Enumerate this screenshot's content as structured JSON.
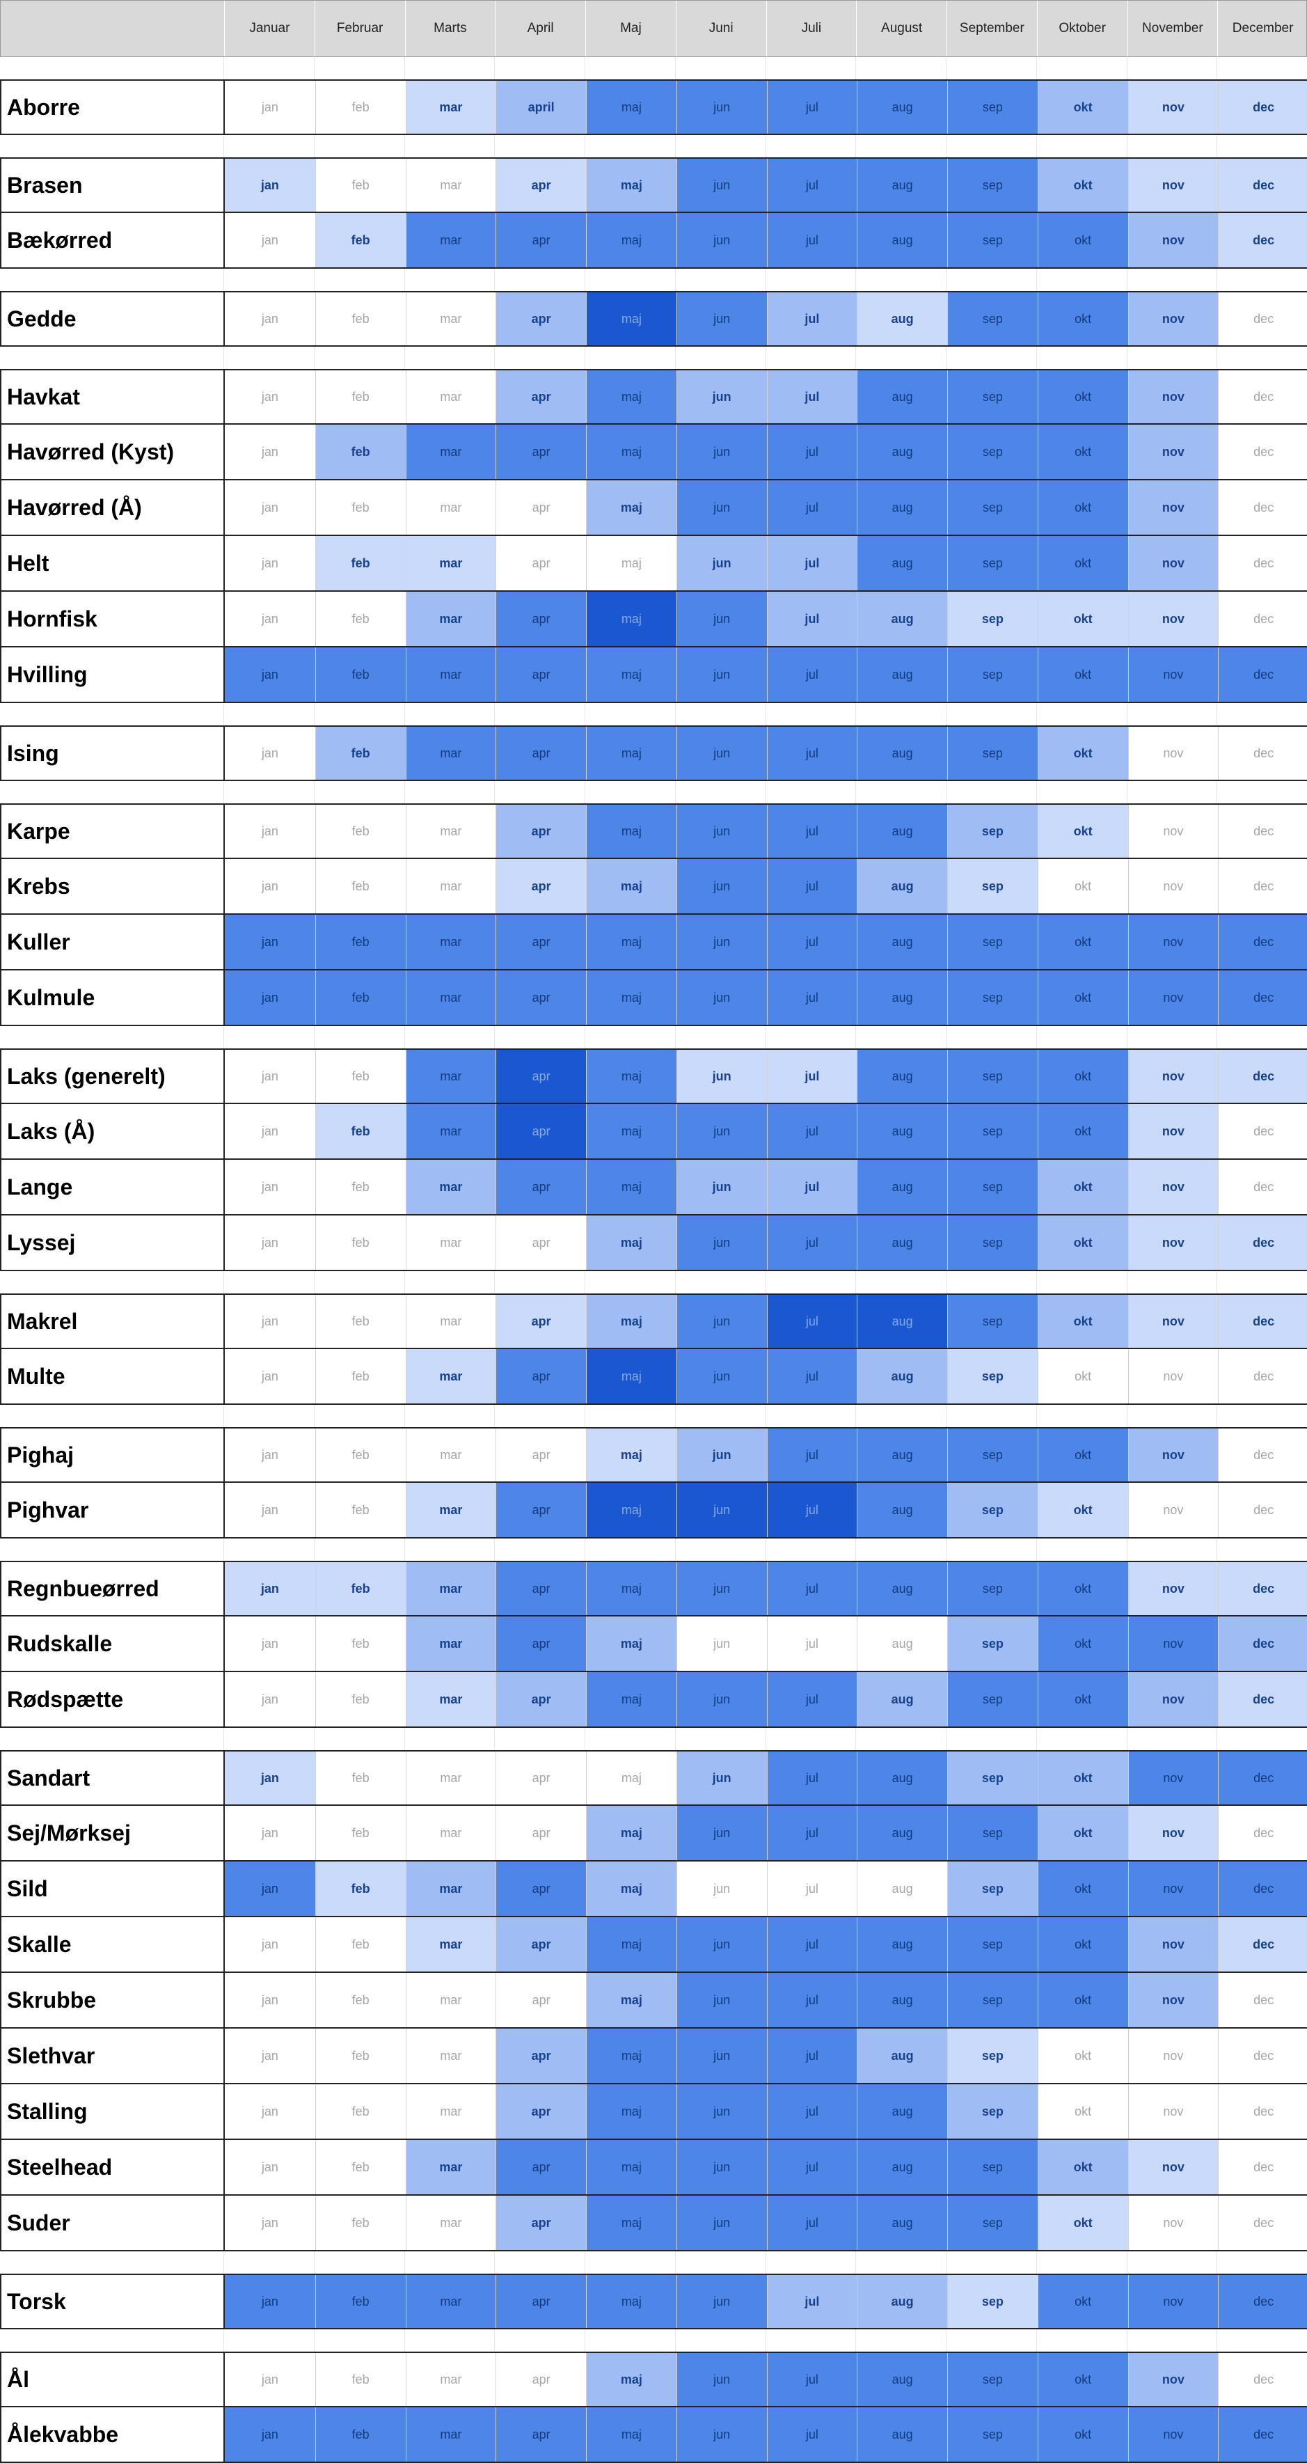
{
  "colors": {
    "level_0": "#ffffff",
    "level_1": "#c9dafb",
    "level_2": "#9fbdf4",
    "level_3": "#4d86e6",
    "level_4": "#1a58d1",
    "header_bg": "#d9d9d9"
  },
  "chart_data": {
    "type": "heatmap",
    "title": "",
    "column_headers": [
      "Januar",
      "Februar",
      "Marts",
      "April",
      "Maj",
      "Juni",
      "Juli",
      "August",
      "September",
      "Oktober",
      "November",
      "December"
    ],
    "cell_labels": [
      "jan",
      "feb",
      "mar",
      "apr",
      "maj",
      "jun",
      "jul",
      "aug",
      "sep",
      "okt",
      "nov",
      "dec"
    ],
    "level_scale": "0 = white (none) … 4 = dark blue (peak)",
    "groups": [
      [
        {
          "name": "Aborre",
          "levels": [
            0,
            0,
            1,
            2,
            3,
            3,
            3,
            3,
            3,
            2,
            1,
            1
          ],
          "labels_override": {
            "3": "april"
          }
        }
      ],
      [
        {
          "name": "Brasen",
          "levels": [
            1,
            0,
            0,
            1,
            2,
            3,
            3,
            3,
            3,
            2,
            1,
            1
          ]
        },
        {
          "name": "Bækørred",
          "levels": [
            0,
            1,
            3,
            3,
            3,
            3,
            3,
            3,
            3,
            3,
            2,
            1
          ]
        }
      ],
      [
        {
          "name": "Gedde",
          "levels": [
            0,
            0,
            0,
            2,
            4,
            3,
            2,
            1,
            3,
            3,
            2,
            0
          ]
        }
      ],
      [
        {
          "name": "Havkat",
          "levels": [
            0,
            0,
            0,
            2,
            3,
            2,
            2,
            3,
            3,
            3,
            2,
            0
          ]
        },
        {
          "name": "Havørred (Kyst)",
          "levels": [
            0,
            2,
            3,
            3,
            3,
            3,
            3,
            3,
            3,
            3,
            2,
            0
          ]
        },
        {
          "name": "Havørred (Å)",
          "levels": [
            0,
            0,
            0,
            0,
            2,
            3,
            3,
            3,
            3,
            3,
            2,
            0
          ]
        },
        {
          "name": "Helt",
          "levels": [
            0,
            1,
            1,
            0,
            0,
            2,
            2,
            3,
            3,
            3,
            2,
            0
          ]
        },
        {
          "name": "Hornfisk",
          "levels": [
            0,
            0,
            2,
            3,
            4,
            3,
            2,
            2,
            1,
            1,
            1,
            0
          ]
        },
        {
          "name": "Hvilling",
          "levels": [
            3,
            3,
            3,
            3,
            3,
            3,
            3,
            3,
            3,
            3,
            3,
            3
          ]
        }
      ],
      [
        {
          "name": "Ising",
          "levels": [
            0,
            2,
            3,
            3,
            3,
            3,
            3,
            3,
            3,
            2,
            0,
            0
          ]
        }
      ],
      [
        {
          "name": "Karpe",
          "levels": [
            0,
            0,
            0,
            2,
            3,
            3,
            3,
            3,
            2,
            1,
            0,
            0
          ]
        },
        {
          "name": "Krebs",
          "levels": [
            0,
            0,
            0,
            1,
            2,
            3,
            3,
            2,
            1,
            0,
            0,
            0
          ]
        },
        {
          "name": "Kuller",
          "levels": [
            3,
            3,
            3,
            3,
            3,
            3,
            3,
            3,
            3,
            3,
            3,
            3
          ]
        },
        {
          "name": "Kulmule",
          "levels": [
            3,
            3,
            3,
            3,
            3,
            3,
            3,
            3,
            3,
            3,
            3,
            3
          ]
        }
      ],
      [
        {
          "name": "Laks (generelt)",
          "levels": [
            0,
            0,
            3,
            4,
            3,
            1,
            1,
            3,
            3,
            3,
            1,
            1
          ]
        },
        {
          "name": "Laks (Å)",
          "levels": [
            0,
            1,
            3,
            4,
            3,
            3,
            3,
            3,
            3,
            3,
            1,
            0
          ]
        },
        {
          "name": "Lange",
          "levels": [
            0,
            0,
            2,
            3,
            3,
            2,
            2,
            3,
            3,
            2,
            1,
            0
          ]
        },
        {
          "name": "Lyssej",
          "levels": [
            0,
            0,
            0,
            0,
            2,
            3,
            3,
            3,
            3,
            2,
            1,
            1
          ]
        }
      ],
      [
        {
          "name": "Makrel",
          "levels": [
            0,
            0,
            0,
            1,
            2,
            3,
            4,
            4,
            3,
            2,
            1,
            1
          ]
        },
        {
          "name": "Multe",
          "levels": [
            0,
            0,
            1,
            3,
            4,
            3,
            3,
            2,
            1,
            0,
            0,
            0
          ]
        }
      ],
      [
        {
          "name": "Pighaj",
          "levels": [
            0,
            0,
            0,
            0,
            1,
            2,
            3,
            3,
            3,
            3,
            2,
            0
          ]
        },
        {
          "name": "Pighvar",
          "levels": [
            0,
            0,
            1,
            3,
            4,
            4,
            4,
            3,
            2,
            1,
            0,
            0
          ]
        }
      ],
      [
        {
          "name": "Regnbueørred",
          "levels": [
            1,
            1,
            2,
            3,
            3,
            3,
            3,
            3,
            3,
            3,
            1,
            1
          ]
        },
        {
          "name": "Rudskalle",
          "levels": [
            0,
            0,
            2,
            3,
            2,
            0,
            0,
            0,
            2,
            3,
            3,
            2
          ]
        },
        {
          "name": "Rødspætte",
          "levels": [
            0,
            0,
            1,
            2,
            3,
            3,
            3,
            2,
            3,
            3,
            2,
            1
          ]
        }
      ],
      [
        {
          "name": "Sandart",
          "levels": [
            1,
            0,
            0,
            0,
            0,
            2,
            3,
            3,
            2,
            2,
            3,
            3
          ]
        },
        {
          "name": "Sej/Mørksej",
          "levels": [
            0,
            0,
            0,
            0,
            2,
            3,
            3,
            3,
            3,
            2,
            1,
            0
          ]
        },
        {
          "name": "Sild",
          "levels": [
            3,
            1,
            2,
            3,
            2,
            0,
            0,
            0,
            2,
            3,
            3,
            3
          ]
        },
        {
          "name": "Skalle",
          "levels": [
            0,
            0,
            1,
            2,
            3,
            3,
            3,
            3,
            3,
            3,
            2,
            1
          ]
        },
        {
          "name": "Skrubbe",
          "levels": [
            0,
            0,
            0,
            0,
            2,
            3,
            3,
            3,
            3,
            3,
            2,
            0
          ]
        },
        {
          "name": "Slethvar",
          "levels": [
            0,
            0,
            0,
            2,
            3,
            3,
            3,
            2,
            1,
            0,
            0,
            0
          ]
        },
        {
          "name": "Stalling",
          "levels": [
            0,
            0,
            0,
            2,
            3,
            3,
            3,
            3,
            2,
            0,
            0,
            0
          ]
        },
        {
          "name": "Steelhead",
          "levels": [
            0,
            0,
            2,
            3,
            3,
            3,
            3,
            3,
            3,
            2,
            1,
            0
          ]
        },
        {
          "name": "Suder",
          "levels": [
            0,
            0,
            0,
            2,
            3,
            3,
            3,
            3,
            3,
            1,
            0,
            0
          ]
        }
      ],
      [
        {
          "name": "Torsk",
          "levels": [
            3,
            3,
            3,
            3,
            3,
            3,
            2,
            2,
            1,
            3,
            3,
            3
          ]
        }
      ],
      [
        {
          "name": "Ål",
          "levels": [
            0,
            0,
            0,
            0,
            2,
            3,
            3,
            3,
            3,
            3,
            2,
            0
          ]
        },
        {
          "name": "Ålekvabbe",
          "levels": [
            3,
            3,
            3,
            3,
            3,
            3,
            3,
            3,
            3,
            3,
            3,
            3
          ]
        }
      ]
    ]
  }
}
